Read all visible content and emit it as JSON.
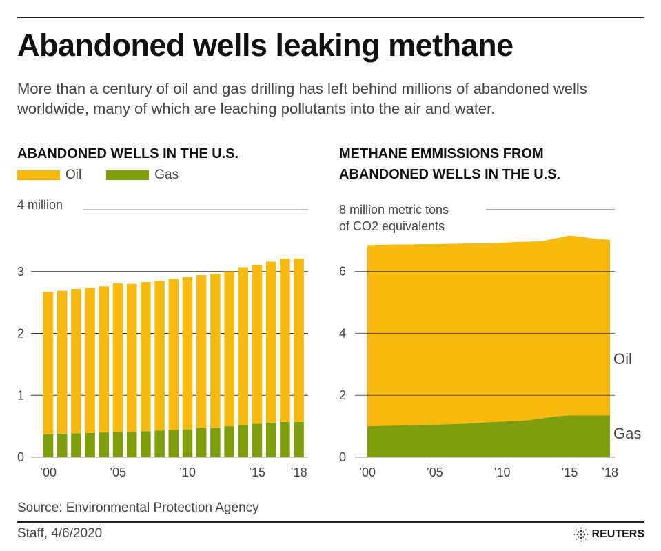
{
  "header": {
    "title": "Abandoned wells leaking methane",
    "subtitle": "More than a century of oil and gas drilling has left behind millions of abandoned wells worldwide, many of which are leaching pollutants into the air and water."
  },
  "colors": {
    "oil": "#F8BA0F",
    "gas": "#7F9E0B",
    "grid": "#8a8f99"
  },
  "chart_data": [
    {
      "type": "bar",
      "stacked": true,
      "title": "ABANDONED WELLS IN THE U.S.",
      "legend": [
        {
          "name": "Oil"
        },
        {
          "name": "Gas"
        }
      ],
      "legend_placement": "top-left",
      "categories": [
        2000,
        2001,
        2002,
        2003,
        2004,
        2005,
        2006,
        2007,
        2008,
        2009,
        2010,
        2011,
        2012,
        2013,
        2014,
        2015,
        2016,
        2017,
        2018
      ],
      "x_tick_labels": [
        "’00",
        "’05",
        "’10",
        "’15",
        "’18"
      ],
      "x_tick_years": [
        2000,
        2005,
        2010,
        2015,
        2018
      ],
      "y_tick_labels": [
        "0",
        "1",
        "2",
        "3",
        "4 million"
      ],
      "y_ticks": [
        0,
        1,
        2,
        3,
        4
      ],
      "ylim": [
        0,
        4
      ],
      "grid": true,
      "series": [
        {
          "name": "Gas",
          "values": [
            0.37,
            0.38,
            0.385,
            0.39,
            0.4,
            0.41,
            0.41,
            0.42,
            0.43,
            0.44,
            0.45,
            0.47,
            0.48,
            0.5,
            0.52,
            0.54,
            0.56,
            0.57,
            0.57
          ]
        },
        {
          "name": "Oil",
          "values": [
            2.3,
            2.31,
            2.335,
            2.35,
            2.36,
            2.4,
            2.39,
            2.41,
            2.42,
            2.44,
            2.46,
            2.47,
            2.48,
            2.5,
            2.55,
            2.57,
            2.6,
            2.64,
            2.64
          ]
        }
      ]
    },
    {
      "type": "area",
      "stacked": true,
      "title_lines": [
        "METHANE EMMISSIONS FROM",
        "ABANDONED WELLS IN THE U.S."
      ],
      "x": [
        2000,
        2001,
        2002,
        2003,
        2004,
        2005,
        2006,
        2007,
        2008,
        2009,
        2010,
        2011,
        2012,
        2013,
        2014,
        2015,
        2016,
        2017,
        2018
      ],
      "x_tick_labels": [
        "’00",
        "’05",
        "’10",
        "’15",
        "’18"
      ],
      "x_tick_years": [
        2000,
        2005,
        2010,
        2015,
        2018
      ],
      "y_tick_labels": [
        "0",
        "2",
        "4",
        "6"
      ],
      "y_ticks": [
        0,
        2,
        4,
        6
      ],
      "y_unit_label": [
        "8 million metric tons",
        "of CO2 equivalents"
      ],
      "ylim": [
        0,
        8
      ],
      "grid": true,
      "series": [
        {
          "name": "Gas",
          "values": [
            1.0,
            1.01,
            1.02,
            1.03,
            1.04,
            1.05,
            1.06,
            1.08,
            1.1,
            1.13,
            1.15,
            1.17,
            1.2,
            1.26,
            1.32,
            1.35,
            1.35,
            1.35,
            1.35
          ]
        },
        {
          "name": "Oil",
          "values": [
            5.85,
            5.85,
            5.85,
            5.84,
            5.84,
            5.83,
            5.83,
            5.82,
            5.81,
            5.78,
            5.78,
            5.78,
            5.76,
            5.72,
            5.75,
            5.81,
            5.76,
            5.7,
            5.67
          ]
        }
      ]
    }
  ],
  "footer": {
    "source": "Source: Environmental Protection Agency",
    "credit": "Staff,  4/6/2020",
    "brand": "REUTERS"
  }
}
